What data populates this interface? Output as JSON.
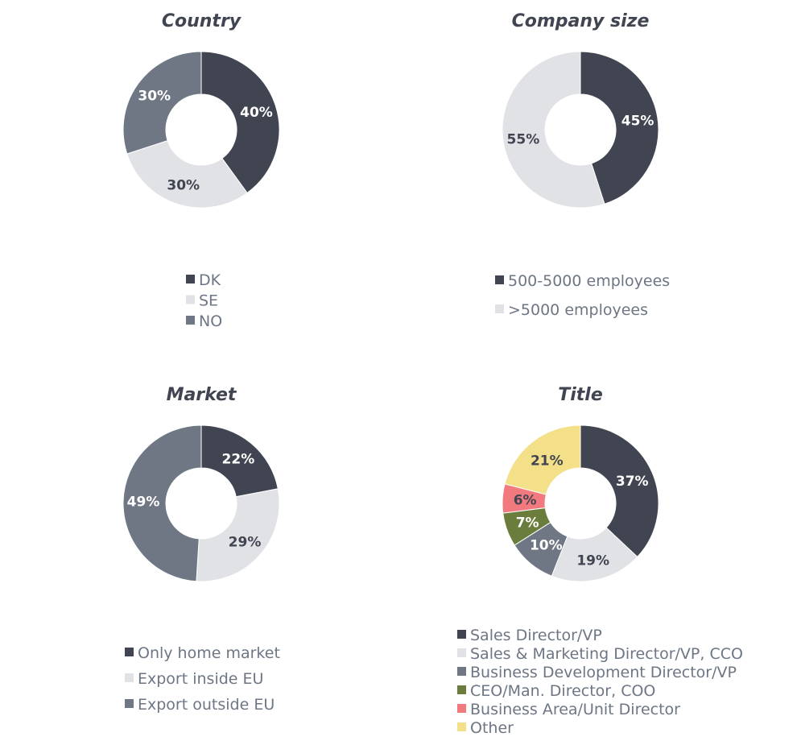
{
  "chart_data": [
    {
      "type": "pie",
      "title": "Country",
      "categories": [
        "DK",
        "SE",
        "NO"
      ],
      "values": [
        40,
        30,
        30
      ],
      "labels": [
        "40%",
        "30%",
        "30%"
      ],
      "colors": [
        "#404551",
        "#e1e2e6",
        "#6f7785"
      ],
      "label_colors": [
        "#ffffff",
        "#404551",
        "#ffffff"
      ],
      "label_weights": [
        "bold",
        "bold",
        "bold"
      ],
      "legend": "bottom"
    },
    {
      "type": "pie",
      "title": "Company size",
      "categories": [
        "500-5000 employees",
        ">5000 employees"
      ],
      "values": [
        45,
        55
      ],
      "labels": [
        "45%",
        "55%"
      ],
      "colors": [
        "#404551",
        "#e1e2e6"
      ],
      "label_colors": [
        "#ffffff",
        "#404551"
      ],
      "label_weights": [
        "bold",
        "bold"
      ],
      "legend": "bottom"
    },
    {
      "type": "pie",
      "title": "Market",
      "categories": [
        "Only home market",
        "Export inside EU",
        "Export outside EU"
      ],
      "values": [
        22,
        29,
        49
      ],
      "labels": [
        "22%",
        "29%",
        "49%"
      ],
      "colors": [
        "#404551",
        "#e1e2e6",
        "#6f7785"
      ],
      "label_colors": [
        "#ffffff",
        "#404551",
        "#ffffff"
      ],
      "label_weights": [
        "bold",
        "normal",
        "bold"
      ],
      "legend": "bottom"
    },
    {
      "type": "pie",
      "title": "Title",
      "categories": [
        "Sales Director/VP",
        "Sales & Marketing Director/VP, CCO",
        "Business Development Director/VP",
        "CEO/Man. Director, COO",
        "Business Area/Unit Director",
        "Other"
      ],
      "values": [
        37,
        19,
        10,
        7,
        6,
        21
      ],
      "labels": [
        "37%",
        "19%",
        "10%",
        "7%",
        "6%",
        "21%"
      ],
      "colors": [
        "#404551",
        "#e1e2e6",
        "#6f7785",
        "#6b7d3c",
        "#f27a7e",
        "#f5e08a"
      ],
      "label_colors": [
        "#ffffff",
        "#404551",
        "#ffffff",
        "#ffffff",
        "#404551",
        "#404551"
      ],
      "label_weights": [
        "bold",
        "bold",
        "bold",
        "bold",
        "bold",
        "bold"
      ],
      "legend": "bottom"
    }
  ]
}
